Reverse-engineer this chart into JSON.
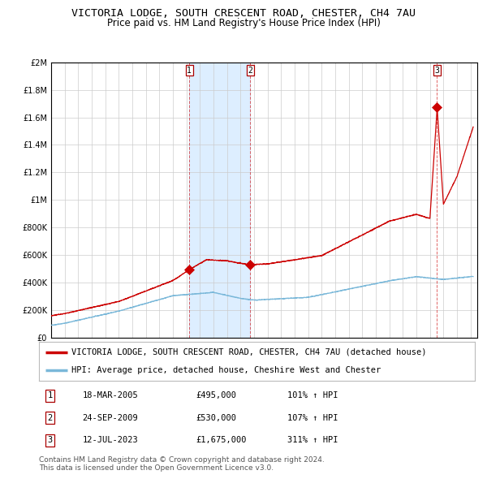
{
  "title": "VICTORIA LODGE, SOUTH CRESCENT ROAD, CHESTER, CH4 7AU",
  "subtitle": "Price paid vs. HM Land Registry's House Price Index (HPI)",
  "hpi_label": "HPI: Average price, detached house, Cheshire West and Chester",
  "property_label": "VICTORIA LODGE, SOUTH CRESCENT ROAD, CHESTER, CH4 7AU (detached house)",
  "footer_line1": "Contains HM Land Registry data © Crown copyright and database right 2024.",
  "footer_line2": "This data is licensed under the Open Government Licence v3.0.",
  "transactions": [
    {
      "num": 1,
      "date": "18-MAR-2005",
      "price": "£495,000",
      "pct": "101% ↑ HPI",
      "year": 2005.21
    },
    {
      "num": 2,
      "date": "24-SEP-2009",
      "price": "£530,000",
      "pct": "107% ↑ HPI",
      "year": 2009.73
    },
    {
      "num": 3,
      "date": "12-JUL-2023",
      "price": "£1,675,000",
      "pct": "311% ↑ HPI",
      "year": 2023.53
    }
  ],
  "transaction_prices": [
    495000,
    530000,
    1675000
  ],
  "xlim": [
    1995.0,
    2026.5
  ],
  "ylim": [
    0,
    2000000
  ],
  "yticks": [
    0,
    200000,
    400000,
    600000,
    800000,
    1000000,
    1200000,
    1400000,
    1600000,
    1800000,
    2000000
  ],
  "xticks": [
    1995,
    1996,
    1997,
    1998,
    1999,
    2000,
    2001,
    2002,
    2003,
    2004,
    2005,
    2006,
    2007,
    2008,
    2009,
    2010,
    2011,
    2012,
    2013,
    2014,
    2015,
    2016,
    2017,
    2018,
    2019,
    2020,
    2021,
    2022,
    2023,
    2024,
    2025,
    2026
  ],
  "hpi_color": "#7ab8d9",
  "property_color": "#cc0000",
  "shade_color": "#ddeeff",
  "grid_color": "#cccccc",
  "background_color": "#ffffff",
  "title_fontsize": 9.5,
  "subtitle_fontsize": 8.5,
  "tick_fontsize": 7,
  "legend_fontsize": 7.5,
  "footer_fontsize": 6.5
}
